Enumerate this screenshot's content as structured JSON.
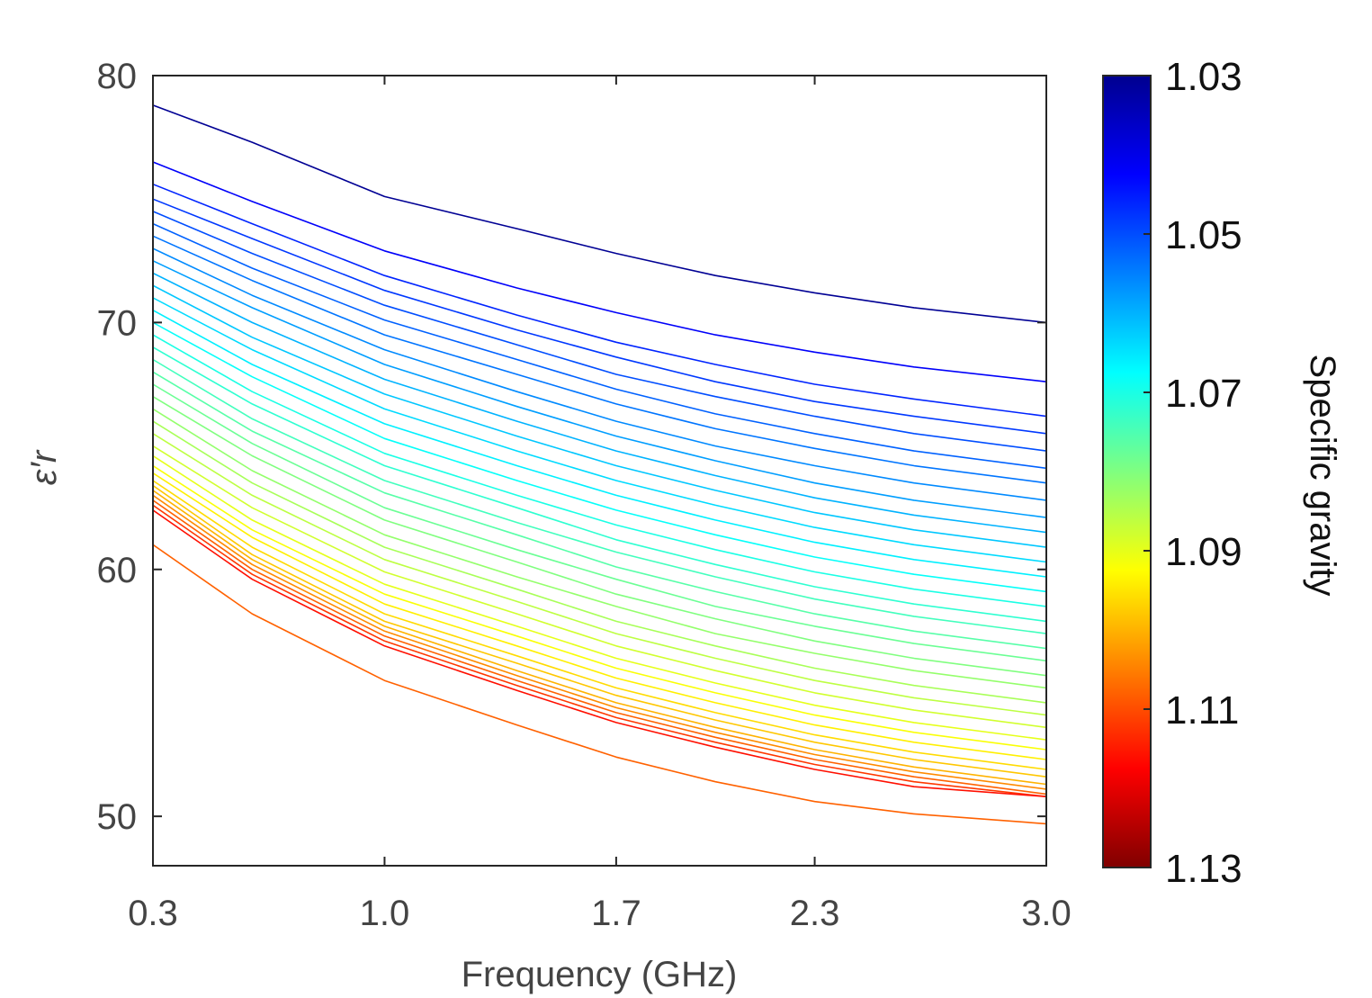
{
  "chart_data": {
    "type": "line",
    "title": "",
    "xlabel": "Frequency (GHz)",
    "ylabel": "ε′r",
    "xlim": [
      0.3,
      3.0
    ],
    "ylim": [
      48,
      80
    ],
    "x_ticks": [
      "0.3",
      "1.0",
      "1.7",
      "2.3",
      "3.0"
    ],
    "x_tick_values": [
      0.3,
      1.0,
      1.7,
      2.3,
      3.0
    ],
    "y_ticks": [
      "50",
      "60",
      "70",
      "80"
    ],
    "y_tick_values": [
      50,
      60,
      70,
      80
    ],
    "grid": false,
    "colormap": "jet",
    "colorbar": {
      "label": "Specific gravity",
      "range": [
        1.03,
        1.13
      ],
      "ticks": [
        "1.03",
        "1.05",
        "1.07",
        "1.09",
        "1.11",
        "1.13"
      ],
      "tick_values": [
        1.03,
        1.05,
        1.07,
        1.09,
        1.11,
        1.13
      ],
      "reversed": true
    },
    "x": [
      0.3,
      0.6,
      1.0,
      1.4,
      1.7,
      2.0,
      2.3,
      2.6,
      3.0
    ],
    "series": [
      {
        "sg": 1.032,
        "values": [
          78.8,
          77.3,
          75.1,
          73.8,
          72.8,
          71.9,
          71.2,
          70.6,
          70.0
        ]
      },
      {
        "sg": 1.042,
        "values": [
          76.5,
          74.9,
          72.9,
          71.4,
          70.4,
          69.5,
          68.8,
          68.2,
          67.6
        ]
      },
      {
        "sg": 1.046,
        "values": [
          75.6,
          74.0,
          71.9,
          70.3,
          69.2,
          68.3,
          67.5,
          66.9,
          66.2
        ]
      },
      {
        "sg": 1.048,
        "values": [
          75.0,
          73.4,
          71.3,
          69.7,
          68.6,
          67.6,
          66.8,
          66.2,
          65.5
        ]
      },
      {
        "sg": 1.05,
        "values": [
          74.5,
          72.8,
          70.7,
          69.1,
          67.9,
          67.0,
          66.2,
          65.5,
          64.8
        ]
      },
      {
        "sg": 1.052,
        "values": [
          74.0,
          72.2,
          70.1,
          68.5,
          67.3,
          66.3,
          65.5,
          64.8,
          64.1
        ]
      },
      {
        "sg": 1.054,
        "values": [
          73.5,
          71.7,
          69.5,
          67.9,
          66.7,
          65.7,
          64.9,
          64.2,
          63.5
        ]
      },
      {
        "sg": 1.056,
        "values": [
          73.0,
          71.1,
          68.9,
          67.2,
          66.0,
          65.0,
          64.2,
          63.5,
          62.8
        ]
      },
      {
        "sg": 1.058,
        "values": [
          72.5,
          70.6,
          68.3,
          66.6,
          65.4,
          64.4,
          63.5,
          62.8,
          62.1
        ]
      },
      {
        "sg": 1.06,
        "values": [
          72.0,
          70.0,
          67.7,
          66.0,
          64.8,
          63.8,
          62.9,
          62.2,
          61.5
        ]
      },
      {
        "sg": 1.062,
        "values": [
          71.5,
          69.4,
          67.1,
          65.4,
          64.2,
          63.2,
          62.3,
          61.6,
          60.9
        ]
      },
      {
        "sg": 1.064,
        "values": [
          71.0,
          68.9,
          66.5,
          64.8,
          63.6,
          62.6,
          61.7,
          61.0,
          60.3
        ]
      },
      {
        "sg": 1.066,
        "values": [
          70.5,
          68.3,
          65.9,
          64.2,
          63.0,
          62.0,
          61.1,
          60.4,
          59.7
        ]
      },
      {
        "sg": 1.068,
        "values": [
          70.0,
          67.8,
          65.3,
          63.6,
          62.4,
          61.4,
          60.5,
          59.8,
          59.1
        ]
      },
      {
        "sg": 1.07,
        "values": [
          69.5,
          67.2,
          64.7,
          63.0,
          61.8,
          60.8,
          59.9,
          59.2,
          58.5
        ]
      },
      {
        "sg": 1.072,
        "values": [
          69.0,
          66.7,
          64.2,
          62.5,
          61.2,
          60.2,
          59.3,
          58.6,
          57.9
        ]
      },
      {
        "sg": 1.074,
        "values": [
          68.5,
          66.1,
          63.6,
          61.9,
          60.7,
          59.7,
          58.8,
          58.1,
          57.4
        ]
      },
      {
        "sg": 1.076,
        "values": [
          68.0,
          65.6,
          63.1,
          61.4,
          60.1,
          59.1,
          58.2,
          57.5,
          56.8
        ]
      },
      {
        "sg": 1.078,
        "values": [
          67.5,
          65.1,
          62.5,
          60.8,
          59.6,
          58.5,
          57.7,
          57.0,
          56.3
        ]
      },
      {
        "sg": 1.08,
        "values": [
          67.0,
          64.6,
          62.0,
          60.3,
          59.0,
          58.0,
          57.1,
          56.4,
          55.7
        ]
      },
      {
        "sg": 1.082,
        "values": [
          66.5,
          64.0,
          61.4,
          59.7,
          58.5,
          57.4,
          56.6,
          55.9,
          55.2
        ]
      },
      {
        "sg": 1.084,
        "values": [
          66.0,
          63.5,
          60.9,
          59.2,
          57.9,
          56.9,
          56.0,
          55.3,
          54.6
        ]
      },
      {
        "sg": 1.086,
        "values": [
          65.5,
          63.0,
          60.4,
          58.7,
          57.4,
          56.4,
          55.5,
          54.8,
          54.1
        ]
      },
      {
        "sg": 1.088,
        "values": [
          65.0,
          62.5,
          59.9,
          58.2,
          56.9,
          55.9,
          55.0,
          54.3,
          53.6
        ]
      },
      {
        "sg": 1.09,
        "values": [
          64.6,
          62.0,
          59.4,
          57.7,
          56.4,
          55.4,
          54.5,
          53.8,
          53.1
        ]
      },
      {
        "sg": 1.092,
        "values": [
          64.2,
          61.6,
          59.0,
          57.3,
          56.0,
          55.0,
          54.1,
          53.4,
          52.7
        ]
      },
      {
        "sg": 1.094,
        "values": [
          63.9,
          61.3,
          58.6,
          56.9,
          55.6,
          54.6,
          53.7,
          53.0,
          52.3
        ]
      },
      {
        "sg": 1.096,
        "values": [
          63.6,
          60.9,
          58.2,
          56.5,
          55.2,
          54.2,
          53.3,
          52.6,
          51.9
        ]
      },
      {
        "sg": 1.098,
        "values": [
          63.4,
          60.6,
          57.9,
          56.2,
          54.9,
          53.9,
          53.0,
          52.3,
          51.6
        ]
      },
      {
        "sg": 1.1,
        "values": [
          63.2,
          60.4,
          57.7,
          55.9,
          54.6,
          53.6,
          52.7,
          52.0,
          51.3
        ]
      },
      {
        "sg": 1.104,
        "values": [
          63.0,
          60.2,
          57.5,
          55.7,
          54.4,
          53.4,
          52.5,
          51.8,
          51.1
        ]
      },
      {
        "sg": 1.108,
        "values": [
          62.8,
          60.0,
          57.3,
          55.5,
          54.2,
          53.2,
          52.3,
          51.6,
          50.9
        ]
      },
      {
        "sg": 1.112,
        "values": [
          62.6,
          59.8,
          57.1,
          55.3,
          54.0,
          53.0,
          52.1,
          51.4,
          50.8
        ]
      },
      {
        "sg": 1.116,
        "values": [
          62.4,
          59.6,
          56.9,
          55.1,
          53.8,
          52.8,
          51.9,
          51.2,
          50.8
        ]
      },
      {
        "sg": 1.108,
        "values": [
          61.0,
          58.2,
          55.5,
          53.7,
          52.4,
          51.4,
          50.6,
          50.1,
          49.7
        ]
      }
    ]
  }
}
